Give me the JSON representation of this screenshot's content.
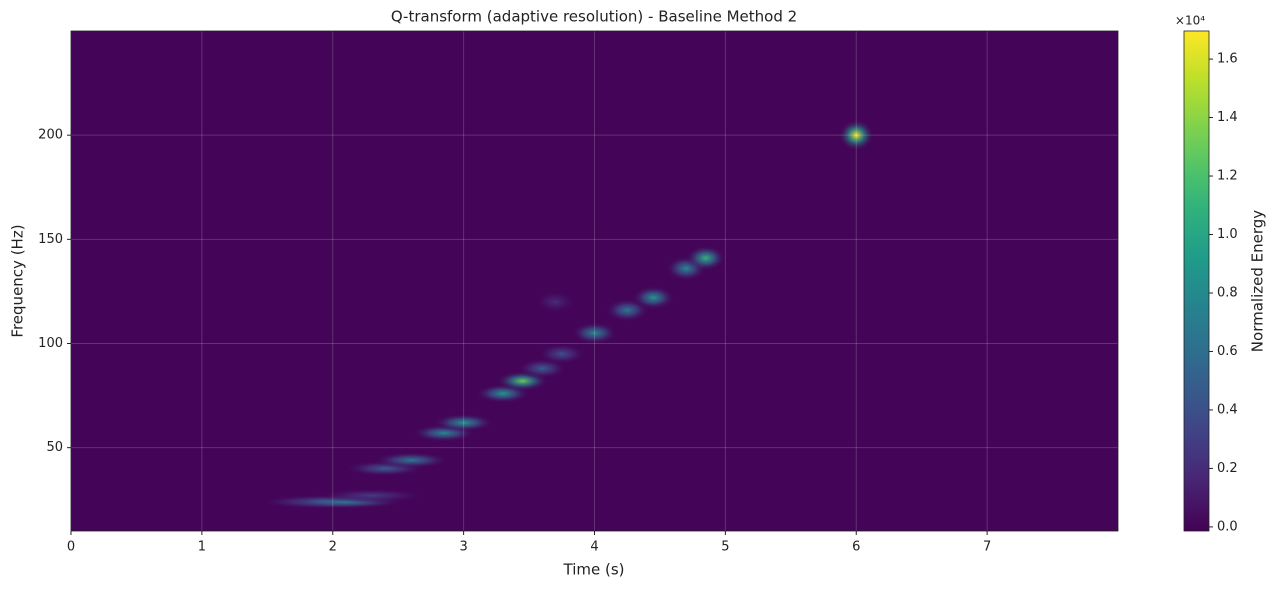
{
  "chart_data": {
    "type": "heatmap",
    "title": "Q-transform (adaptive resolution) - Baseline Method 2",
    "x_label": "Time (s)",
    "y_label": "Frequency (Hz)",
    "colorbar_label": "Normalized Energy",
    "colorbar_offset": "×10⁴",
    "colormap": "viridis",
    "grid": true,
    "x": [
      1.9,
      2.1,
      2.3,
      2.4,
      2.6,
      2.85,
      3.0,
      3.3,
      3.45,
      3.6,
      3.75,
      4.0,
      4.25,
      4.45,
      4.7,
      4.85,
      3.7,
      6.0
    ],
    "y": [
      24,
      24,
      27,
      40,
      44,
      57,
      62,
      76,
      82,
      88,
      95,
      105,
      116,
      122,
      136,
      141,
      120,
      200
    ],
    "values": [
      5000,
      7000,
      3000,
      5000,
      7000,
      8000,
      9000,
      9000,
      13000,
      5000,
      4000,
      8000,
      7000,
      9000,
      8000,
      11000,
      2000,
      16500
    ],
    "xlim": [
      0,
      8
    ],
    "xticks": [
      0,
      1,
      2,
      3,
      4,
      5,
      6,
      7
    ],
    "ylim": [
      10,
      250
    ],
    "yticks": [
      50,
      100,
      150,
      200
    ],
    "clim": [
      -140,
      16960
    ],
    "cticks": [
      {
        "value": 0,
        "label": "0.0"
      },
      {
        "value": 2000,
        "label": "0.2"
      },
      {
        "value": 4000,
        "label": "0.4"
      },
      {
        "value": 6000,
        "label": "0.6"
      },
      {
        "value": 8000,
        "label": "0.8"
      },
      {
        "value": 10000,
        "label": "1.0"
      },
      {
        "value": 12000,
        "label": "1.2"
      },
      {
        "value": 14000,
        "label": "1.4"
      },
      {
        "value": 16000,
        "label": "1.6"
      }
    ]
  }
}
